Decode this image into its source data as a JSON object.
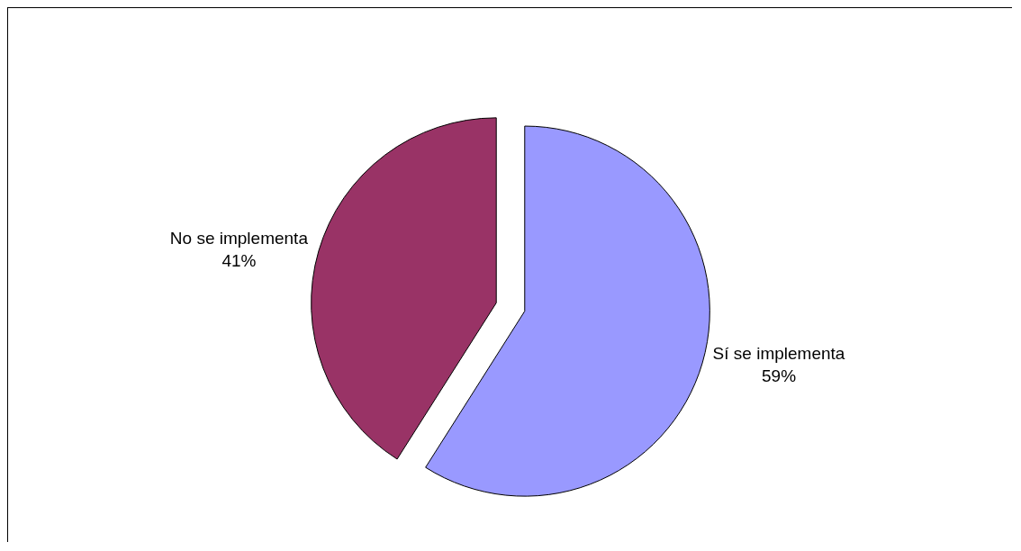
{
  "chart_data": {
    "type": "pie",
    "categories": [
      "Sí se implementa",
      "No se implementa"
    ],
    "values": [
      59,
      41
    ],
    "value_labels": [
      "59%",
      "41%"
    ],
    "colors": [
      "#9999ff",
      "#993366"
    ],
    "legend": false
  }
}
